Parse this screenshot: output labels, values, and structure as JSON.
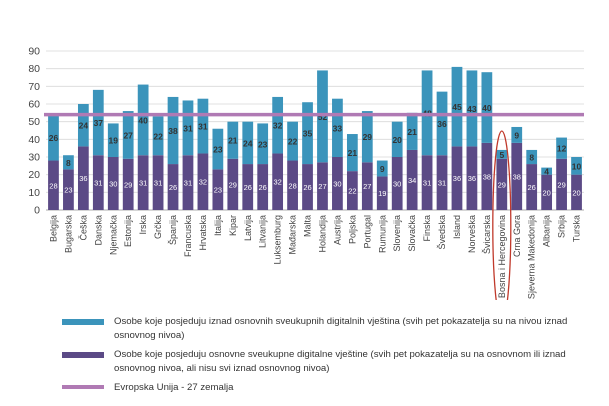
{
  "chart_data": {
    "type": "bar",
    "stacked": true,
    "categories": [
      "Belgija",
      "Bugarska",
      "Češka",
      "Danska",
      "Njemačka",
      "Estonija",
      "Irska",
      "Grčka",
      "Španija",
      "Francuska",
      "Hrvatska",
      "Italija",
      "Kipar",
      "Latvija",
      "Litvanija",
      "Luksemburg",
      "Mađarska",
      "Malta",
      "Holandija",
      "Austrija",
      "Poljska",
      "Portugal",
      "Rumunija",
      "Slovenija",
      "Slovačka",
      "Finska",
      "Švedska",
      "Island",
      "Norveška",
      "Švicarska",
      "Bosna i Hercegovina",
      "Crna Gora",
      "Sjeverna Makedonija",
      "Albanija",
      "Srbija",
      "Turska"
    ],
    "series": [
      {
        "name": "Osobe koje posjeduju osnovne sveukupne digitalne vještine (svih pet pokazatelja su na osnovnom ili iznad osnovnog nivoa, ali nisu svi iznad osnovnog nivoa)",
        "color": "#5b4a86",
        "values": [
          28,
          23,
          36,
          31,
          30,
          29,
          31,
          31,
          26,
          31,
          32,
          23,
          29,
          26,
          26,
          32,
          28,
          26,
          27,
          30,
          22,
          27,
          19,
          30,
          34,
          31,
          31,
          36,
          36,
          38,
          29,
          38,
          26,
          20,
          29,
          20
        ]
      },
      {
        "name": "Osobe koje posjeduju iznad osnovnih sveukupnih digitalnih vještina (svih pet pokazatelja su na nivou iznad osnovnog nivoa)",
        "color": "#3b94bb",
        "values": [
          26,
          8,
          24,
          37,
          19,
          27,
          40,
          22,
          38,
          31,
          31,
          23,
          21,
          24,
          23,
          32,
          22,
          35,
          52,
          33,
          21,
          29,
          9,
          20,
          21,
          48,
          36,
          45,
          43,
          40,
          5,
          9,
          8,
          4,
          12,
          10
        ]
      }
    ],
    "reference_line": {
      "name": "Evropska Unija - 27 zemalja",
      "value": 54,
      "color": "#b07ab4"
    },
    "highlighted_category": "Bosna i Hercegovina",
    "yticks": [
      0,
      10,
      20,
      30,
      40,
      50,
      60,
      70,
      80,
      90
    ],
    "ylim": [
      0,
      90
    ],
    "title": "",
    "xlabel": "",
    "ylabel": "",
    "grid": true,
    "legend_position": "bottom"
  },
  "legend": {
    "items": [
      {
        "label": "Osobe koje posjeduju iznad osnovnih sveukupnih digitalnih vještina (svih pet pokazatelja su na nivou iznad osnovnog nivoa)",
        "color": "#3b94bb"
      },
      {
        "label": "Osobe koje posjeduju osnovne sveukupne digitalne vještine (svih pet pokazatelja su na osnovnom ili iznad osnovnog nivoa, ali nisu svi iznad osnovnog nivoa)",
        "color": "#5b4a86"
      },
      {
        "label": "Evropska Unija - 27 zemalja",
        "color": "#b07ab4"
      }
    ]
  }
}
